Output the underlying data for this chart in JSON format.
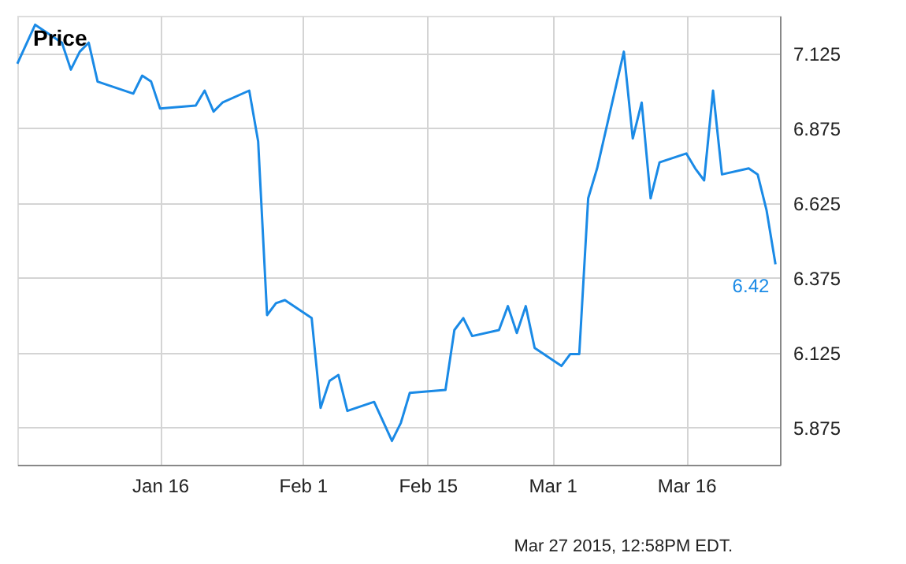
{
  "chart_data": {
    "type": "line",
    "title": "Price",
    "x": [
      "2014-12-31",
      "2015-01-02",
      "2015-01-05",
      "2015-01-06",
      "2015-01-07",
      "2015-01-08",
      "2015-01-09",
      "2015-01-13",
      "2015-01-14",
      "2015-01-15",
      "2015-01-16",
      "2015-01-20",
      "2015-01-21",
      "2015-01-22",
      "2015-01-23",
      "2015-01-26",
      "2015-01-27",
      "2015-01-28",
      "2015-01-29",
      "2015-01-30",
      "2015-02-02",
      "2015-02-03",
      "2015-02-04",
      "2015-02-05",
      "2015-02-06",
      "2015-02-09",
      "2015-02-11",
      "2015-02-12",
      "2015-02-13",
      "2015-02-17",
      "2015-02-18",
      "2015-02-19",
      "2015-02-20",
      "2015-02-23",
      "2015-02-24",
      "2015-02-25",
      "2015-02-26",
      "2015-02-27",
      "2015-03-02",
      "2015-03-03",
      "2015-03-04",
      "2015-03-05",
      "2015-03-06",
      "2015-03-09",
      "2015-03-10",
      "2015-03-11",
      "2015-03-12",
      "2015-03-13",
      "2015-03-16",
      "2015-03-17",
      "2015-03-18",
      "2015-03-19",
      "2015-03-20",
      "2015-03-23",
      "2015-03-24",
      "2015-03-25",
      "2015-03-26"
    ],
    "series": [
      {
        "color": "#1a8ae6",
        "values": [
          7.09,
          7.22,
          7.16,
          7.07,
          7.13,
          7.16,
          7.03,
          6.99,
          7.05,
          7.03,
          6.94,
          6.95,
          7.0,
          6.93,
          6.96,
          7.0,
          6.83,
          6.25,
          6.29,
          6.3,
          6.24,
          5.94,
          6.03,
          6.05,
          5.93,
          5.96,
          5.83,
          5.89,
          5.99,
          6.0,
          6.2,
          6.24,
          6.18,
          6.2,
          6.28,
          6.19,
          6.28,
          6.14,
          6.08,
          6.12,
          6.12,
          6.64,
          6.74,
          7.13,
          6.84,
          6.96,
          6.64,
          6.76,
          6.79,
          6.74,
          6.7,
          7.0,
          6.72,
          6.74,
          6.72,
          6.6,
          6.42
        ],
        "value_labels": [
          null,
          null,
          null,
          null,
          null,
          null,
          null,
          null,
          null,
          null,
          null,
          null,
          null,
          null,
          null,
          null,
          null,
          null,
          null,
          null,
          null,
          null,
          null,
          null,
          null,
          null,
          null,
          null,
          null,
          null,
          null,
          null,
          null,
          null,
          null,
          null,
          null,
          null,
          null,
          null,
          null,
          null,
          null,
          null,
          null,
          null,
          null,
          null,
          null,
          null,
          null,
          null,
          null,
          null,
          null,
          null,
          "6.42"
        ]
      }
    ],
    "xlim": [
      "2014-12-31",
      "2015-03-26T12:00"
    ],
    "xticks": [
      {
        "value": "2015-01-16",
        "label": "Jan 16"
      },
      {
        "value": "2015-02-01",
        "label": "Feb 1"
      },
      {
        "value": "2015-02-15",
        "label": "Feb 15"
      },
      {
        "value": "2015-03-01",
        "label": "Mar 1"
      },
      {
        "value": "2015-03-16",
        "label": "Mar 16"
      }
    ],
    "ylim": [
      5.75,
      7.25
    ],
    "yticks": [
      5.875,
      6.125,
      6.375,
      6.625,
      6.875,
      7.125
    ],
    "grid": true,
    "marker": "none",
    "line_style": "solid",
    "annotations": [
      "Mar 27 2015, 12:58PM EDT."
    ]
  }
}
